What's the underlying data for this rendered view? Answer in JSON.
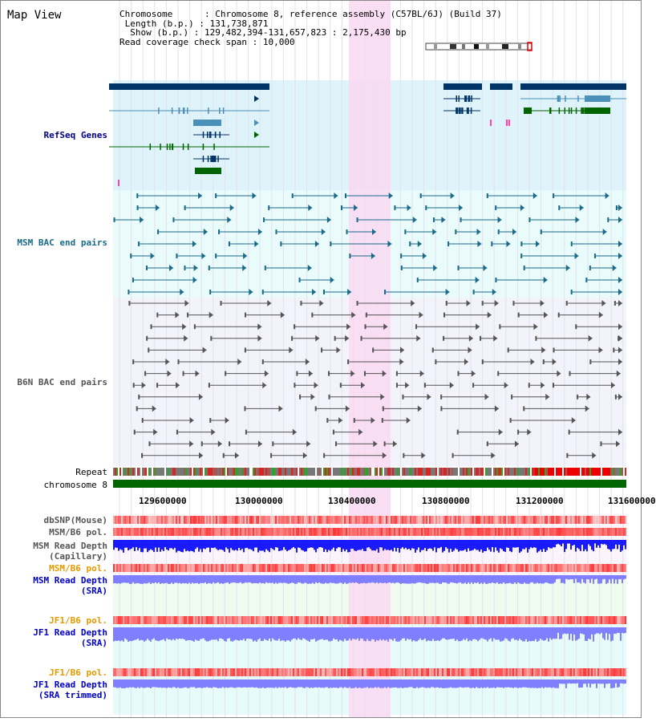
{
  "view": {
    "title": "Map View",
    "header": {
      "chromosome_key": "Chromosome",
      "chromosome_value": "Chromosome 8, reference assembly (C57BL/6J) (Build 37)",
      "length_key": "Length (b.p.)",
      "length_value": "131,738,871",
      "show_key": "Show (b.p.)",
      "show_value": "129,482,394-131,657,823 : 2,175,430 bp",
      "coverage_key": "Read coverage check span",
      "coverage_value": "10,000"
    }
  },
  "tracks": {
    "refseq": "RefSeq Genes",
    "msm_bac": "MSM BAC end pairs",
    "b6n_bac": "B6N BAC end pairs",
    "repeat": "Repeat",
    "chromosome": "chromosome 8",
    "dbsnp": "dbSNP(Mouse)",
    "msm_pol": "MSM/B6 pol.",
    "msm_depth_cap_1": "MSM Read Depth",
    "msm_depth_cap_2": "(Capillary)",
    "msm_pol2": "MSM/B6 pol.",
    "msm_depth_sra_1": "MSM Read Depth",
    "msm_depth_sra_2": "(SRA)",
    "jf1_pol": "JF1/B6 pol.",
    "jf1_depth_sra_1": "JF1 Read Depth",
    "jf1_depth_sra_2": "(SRA)",
    "jf1_pol2": "JF1/B6 pol.",
    "jf1_depth_trim_1": "JF1 Read Depth",
    "jf1_depth_trim_2": "(SRA trimmed)"
  },
  "axis": {
    "ticks": [
      "129600000",
      "130000000",
      "130400000",
      "130800000",
      "131200000",
      "131600000"
    ]
  },
  "colors": {
    "refseq_bg": "#dff3fb",
    "msm_bg": "#e9fbfb",
    "b6n_bg": "#f3f3fb",
    "highlight": "#f9d9f2",
    "gene_dark": "#003366",
    "gene_mid": "#4a90b8",
    "gene_green": "#006400",
    "bac_msm": "#1a6a8a",
    "bac_b6n": "#555555",
    "chromosome": "#006600",
    "depth_cap": "#1a1aff",
    "depth_sra": "#7f7fff",
    "polymorphism": "#ff3333"
  }
}
